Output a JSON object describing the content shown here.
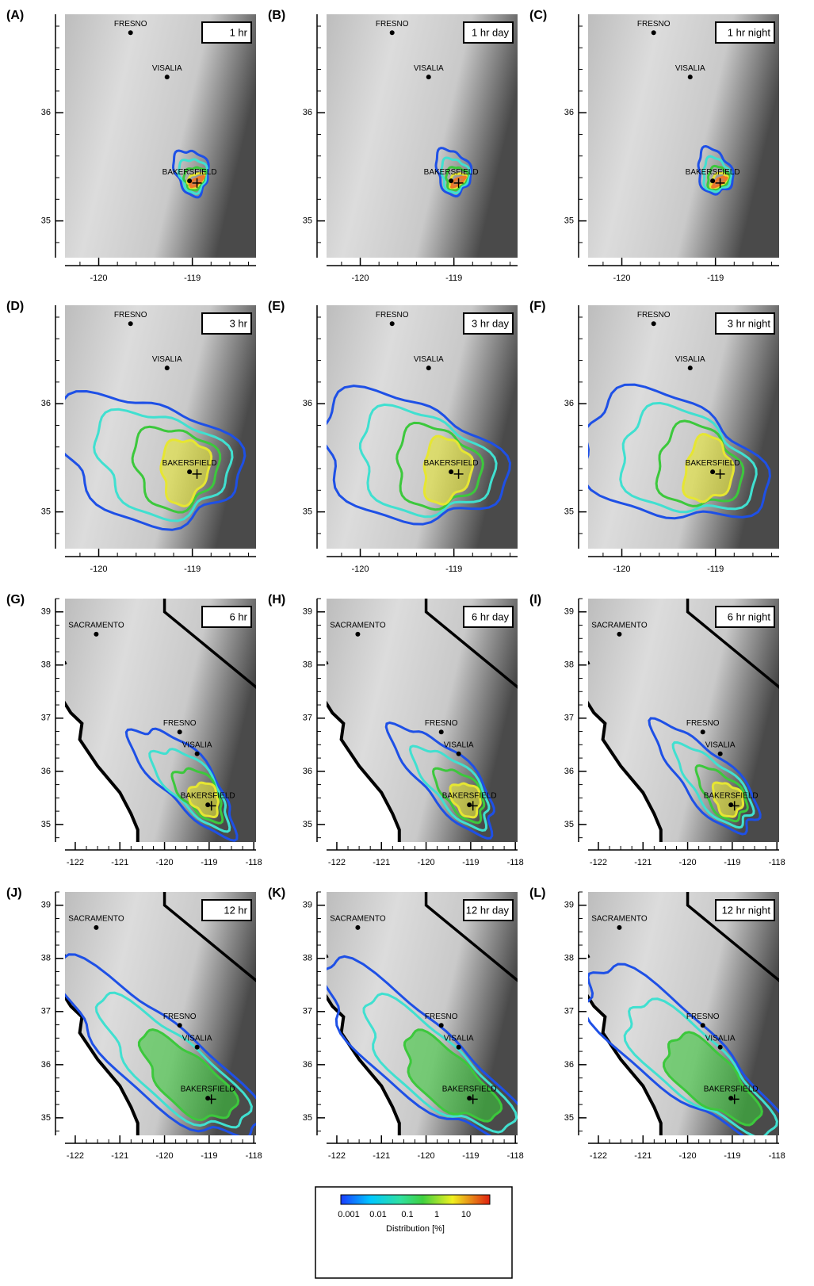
{
  "panels": [
    {
      "letter": "(A)",
      "title": "1 hr"
    },
    {
      "letter": "(B)",
      "title": "1 hr day"
    },
    {
      "letter": "(C)",
      "title": "1 hr night"
    },
    {
      "letter": "(D)",
      "title": "3 hr"
    },
    {
      "letter": "(E)",
      "title": "3 hr day"
    },
    {
      "letter": "(F)",
      "title": "3 hr night"
    },
    {
      "letter": "(G)",
      "title": "6 hr"
    },
    {
      "letter": "(H)",
      "title": "6 hr day"
    },
    {
      "letter": "(I)",
      "title": "6 hr night"
    },
    {
      "letter": "(J)",
      "title": "12 hr"
    },
    {
      "letter": "(K)",
      "title": "12 hr day"
    },
    {
      "letter": "(L)",
      "title": "12 hr night"
    }
  ],
  "axes": {
    "small": {
      "xticks": [
        -120,
        -119
      ],
      "yticks": [
        36,
        35
      ]
    },
    "large": {
      "xticks": [
        -122,
        -121,
        -120,
        -119,
        -118
      ],
      "yticks": [
        39,
        38,
        37,
        36,
        35
      ]
    }
  },
  "cities": [
    "FRESNO",
    "VISALIA",
    "BAKERSFIELD",
    "SACRAMENTO"
  ],
  "legend": {
    "ticks": [
      "0.001",
      "0.01",
      "0.1",
      "1",
      "10"
    ],
    "label": "Distribution [%]"
  }
}
